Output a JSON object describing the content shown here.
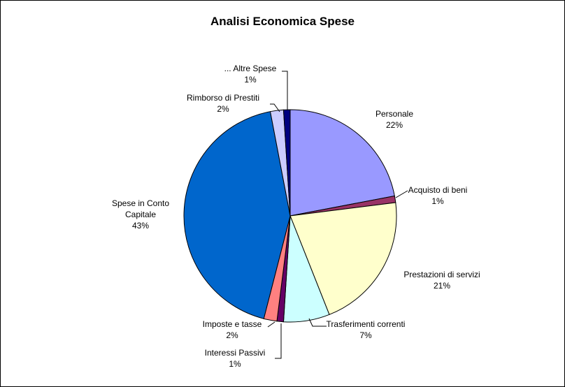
{
  "chart_data": {
    "type": "pie",
    "title": "Analisi Economica Spese",
    "start_angle": "top",
    "direction": "clockwise",
    "slices": [
      {
        "name": "Personale",
        "value": 22,
        "label": "22%",
        "color": "#9999FF"
      },
      {
        "name": "Acquisto di beni",
        "value": 1,
        "label": "1%",
        "color": "#993366"
      },
      {
        "name": "Prestazioni di servizi",
        "value": 21,
        "label": "21%",
        "color": "#FFFFCC"
      },
      {
        "name": "Trasferimenti correnti",
        "value": 7,
        "label": "7%",
        "color": "#CCFFFF"
      },
      {
        "name": "Interessi Passivi",
        "value": 1,
        "label": "1%",
        "color": "#660066"
      },
      {
        "name": "Imposte e tasse",
        "value": 2,
        "label": "2%",
        "color": "#FF8080"
      },
      {
        "name": "Spese in Conto Capitale",
        "value": 43,
        "label": "43%",
        "color": "#0066CC"
      },
      {
        "name": "Rimborso di Prestiti",
        "value": 2,
        "label": "2%",
        "color": "#CCCCFF"
      },
      {
        "name": "... Altre Spese",
        "value": 1,
        "label": "1%",
        "color": "#000080"
      }
    ]
  }
}
